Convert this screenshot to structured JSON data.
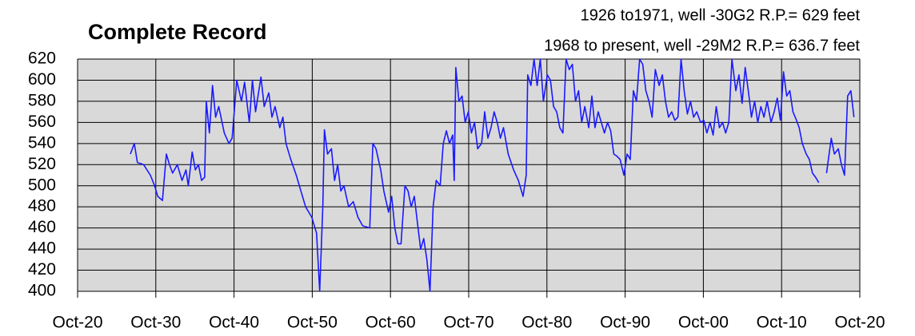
{
  "chart_data": {
    "type": "line",
    "title": "Complete Record",
    "annotations": [
      "1926 to1971, well -30G2 R.P.= 629 feet",
      "1968 to present, well -29M2 R.P.= 636.7 feet"
    ],
    "x": [
      1927.5,
      1928.0,
      1928.4,
      1929.2,
      1930.05,
      1930.6,
      1931.0,
      1931.6,
      1932.1,
      1932.5,
      1932.9,
      1933.5,
      1934.1,
      1934.6,
      1934.9,
      1935.4,
      1935.8,
      1936.2,
      1936.6,
      1937.0,
      1937.2,
      1937.6,
      1938.0,
      1938.4,
      1938.8,
      1939.5,
      1940.1,
      1940.5,
      1941.1,
      1941.7,
      1942.1,
      1942.7,
      1943.1,
      1943.5,
      1944.2,
      1944.6,
      1945.2,
      1945.6,
      1946.0,
      1946.6,
      1947.0,
      1947.4,
      1948.0,
      1948.7,
      1949.3,
      1949.9,
      1950.7,
      1951.3,
      1951.7,
      1952.1,
      1952.3,
      1952.7,
      1953.2,
      1953.6,
      1954.0,
      1954.4,
      1954.8,
      1955.4,
      1956.0,
      1956.6,
      1957.2,
      1958.1,
      1958.5,
      1958.9,
      1959.5,
      1959.9,
      1960.5,
      1960.9,
      1961.3,
      1961.7,
      1962.1,
      1962.6,
      1963.0,
      1963.4,
      1963.8,
      1964.2,
      1964.6,
      1965.0,
      1965.4,
      1965.8,
      1966.2,
      1966.6,
      1967.1,
      1967.5,
      1967.9,
      1968.3,
      1968.7,
      1968.9,
      1969.1,
      1969.5,
      1969.9,
      1970.3,
      1970.7,
      1971.1,
      1971.5,
      1971.9,
      1972.4,
      1972.8,
      1973.2,
      1973.6,
      1974.0,
      1974.4,
      1974.8,
      1975.2,
      1975.8,
      1976.5,
      1977.1,
      1977.7,
      1978.1,
      1978.3,
      1978.7,
      1979.1,
      1979.5,
      1979.9,
      1980.3,
      1980.8,
      1981.2,
      1981.6,
      1982.0,
      1982.4,
      1982.8,
      1983.2,
      1983.6,
      1984.0,
      1984.4,
      1984.8,
      1985.2,
      1985.6,
      1986.1,
      1986.5,
      1986.9,
      1987.3,
      1987.7,
      1988.1,
      1988.5,
      1988.9,
      1989.3,
      1989.7,
      1990.1,
      1990.6,
      1991.0,
      1991.4,
      1991.8,
      1992.2,
      1992.6,
      1993.0,
      1993.4,
      1993.8,
      1994.2,
      1994.6,
      1995.1,
      1995.5,
      1995.9,
      1996.3,
      1996.7,
      1997.1,
      1997.5,
      1997.9,
      1998.3,
      1998.7,
      1999.1,
      1999.5,
      1999.9,
      2000.4,
      2000.8,
      2001.2,
      2001.6,
      2002.0,
      2002.4,
      2002.8,
      2003.2,
      2003.6,
      2004.0,
      2004.4,
      2004.9,
      2005.3,
      2005.7,
      2006.1,
      2006.5,
      2006.9,
      2007.3,
      2007.7,
      2008.1,
      2008.5,
      2008.9,
      2009.4,
      2009.8,
      2010.2,
      2010.6,
      2011.0,
      2011.4,
      2011.8,
      2012.2,
      2012.6,
      2013.0,
      2013.4,
      2013.9,
      2014.3,
      2014.7,
      2015.1,
      2015.5,
      2016.0,
      2016.5,
      2017.1,
      2017.5,
      2018.0,
      2018.4,
      2018.8,
      2019.2,
      2019.6,
      2020.0
    ],
    "series": [
      {
        "color": "#1a1aff",
        "values": [
          530,
          540,
          522,
          520,
          510,
          500,
          490,
          486,
          530,
          520,
          512,
          520,
          505,
          515,
          500,
          532,
          515,
          520,
          505,
          508,
          580,
          550,
          595,
          565,
          575,
          550,
          540,
          545,
          600,
          580,
          598,
          560,
          600,
          570,
          603,
          575,
          588,
          565,
          575,
          555,
          565,
          540,
          525,
          510,
          495,
          480,
          470,
          455,
          400,
          480,
          553,
          530,
          535,
          505,
          520,
          495,
          500,
          480,
          485,
          470,
          462,
          460,
          540,
          535,
          515,
          495,
          475,
          490,
          460,
          445,
          445,
          500,
          495,
          480,
          490,
          465,
          440,
          450,
          430,
          400,
          480,
          505,
          500,
          540,
          552,
          540,
          548,
          505,
          612,
          580,
          585,
          560,
          570,
          550,
          560,
          535,
          540,
          570,
          545,
          555,
          570,
          560,
          545,
          555,
          530,
          515,
          505,
          490,
          510,
          605,
          595,
          620,
          595,
          620,
          580,
          605,
          600,
          575,
          570,
          555,
          550,
          620,
          610,
          615,
          580,
          590,
          560,
          575,
          555,
          585,
          555,
          570,
          560,
          550,
          560,
          552,
          530,
          528,
          525,
          510,
          530,
          525,
          590,
          580,
          620,
          615,
          590,
          580,
          565,
          610,
          595,
          605,
          580,
          565,
          570,
          562,
          565,
          620,
          590,
          568,
          580,
          565,
          570,
          560,
          562,
          550,
          560,
          548,
          575,
          555,
          560,
          550,
          560,
          620,
          590,
          605,
          578,
          612,
          590,
          565,
          580,
          560,
          575,
          565,
          580,
          560,
          570,
          583,
          562,
          608,
          585,
          590,
          570,
          563,
          555,
          540,
          530,
          525,
          512,
          508,
          503,
          null,
          512,
          545,
          530,
          535,
          520,
          510,
          585,
          590,
          565
        ]
      }
    ],
    "xlim": [
      1920.75,
      2020.75
    ],
    "xticks": [
      {
        "value": 1920.75,
        "label": "Oct-20"
      },
      {
        "value": 1930.75,
        "label": "Oct-30"
      },
      {
        "value": 1940.75,
        "label": "Oct-40"
      },
      {
        "value": 1950.75,
        "label": "Oct-50"
      },
      {
        "value": 1960.75,
        "label": "Oct-60"
      },
      {
        "value": 1970.75,
        "label": "Oct-70"
      },
      {
        "value": 1980.75,
        "label": "Oct-80"
      },
      {
        "value": 1990.75,
        "label": "Oct-90"
      },
      {
        "value": 2000.75,
        "label": "Oct-00"
      },
      {
        "value": 2010.75,
        "label": "Oct-10"
      },
      {
        "value": 2020.75,
        "label": "Oct-20"
      }
    ],
    "ylim": [
      400,
      620
    ],
    "yticks": [
      400,
      420,
      440,
      460,
      480,
      500,
      520,
      540,
      560,
      580,
      600,
      620
    ],
    "grid": true
  }
}
